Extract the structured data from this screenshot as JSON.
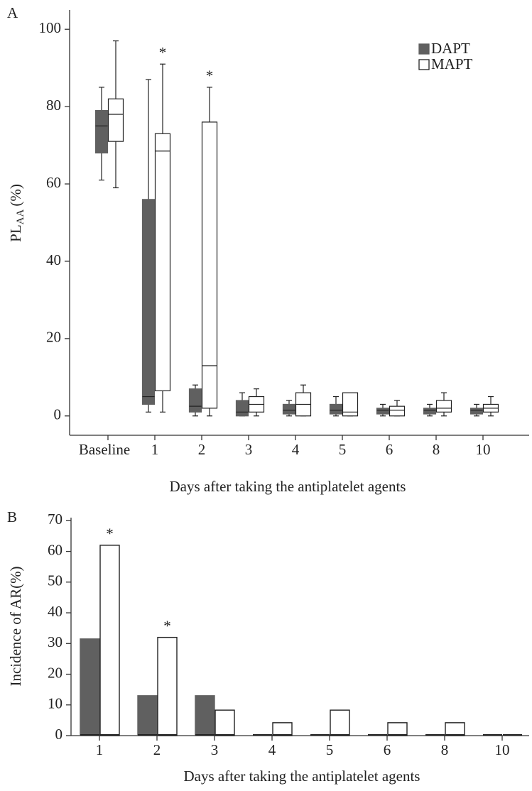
{
  "chart_data": [
    {
      "type": "box",
      "panel": "A",
      "ylabel": {
        "main": "PL",
        "sub": "AA",
        "unit": "(%)"
      },
      "xlabel": "Days after taking the antiplatelet agents",
      "categories": [
        "Baseline",
        "1",
        "2",
        "3",
        "4",
        "5",
        "6",
        "8",
        "10"
      ],
      "series": [
        {
          "name": "DAPT",
          "color": "#606060",
          "min": [
            61,
            1,
            0,
            0,
            0,
            0,
            0,
            0,
            0
          ],
          "q1": [
            68,
            3,
            1,
            0,
            0.5,
            0.5,
            0.5,
            0.5,
            0.5
          ],
          "median": [
            75,
            5,
            2.5,
            1,
            1.5,
            1.5,
            1.5,
            1.5,
            1.5
          ],
          "q3": [
            79,
            56,
            7,
            4,
            3,
            3,
            2,
            2,
            2
          ],
          "max": [
            85,
            87,
            8,
            6,
            4,
            5,
            3,
            3,
            3
          ]
        },
        {
          "name": "MAPT",
          "color": "#ffffff",
          "min": [
            59,
            1,
            0,
            0,
            0,
            0,
            0,
            0,
            0
          ],
          "q1": [
            71,
            6.5,
            2,
            1,
            0,
            0,
            0,
            1,
            1
          ],
          "median": [
            78,
            68.5,
            13,
            3,
            3,
            1,
            1.5,
            2,
            2
          ],
          "q3": [
            82,
            73,
            76,
            5,
            6,
            6,
            2.5,
            4,
            3
          ],
          "max": [
            97,
            91,
            85,
            7,
            8,
            6,
            4,
            6,
            5
          ]
        }
      ],
      "ylim": [
        -5,
        105
      ],
      "yticks": [
        0,
        20,
        40,
        60,
        80,
        100
      ],
      "legend": "top-right",
      "annotations": [
        {
          "text": "*",
          "category": "1",
          "series": "MAPT"
        },
        {
          "text": "*",
          "category": "2",
          "series": "MAPT"
        }
      ]
    },
    {
      "type": "bar",
      "panel": "B",
      "ylabel": "Incidence of AR(%)",
      "xlabel": "Days after taking the antiplatelet agents",
      "categories": [
        "1",
        "2",
        "3",
        "4",
        "5",
        "6",
        "8",
        "10"
      ],
      "series": [
        {
          "name": "DAPT",
          "color": "#606060",
          "values": [
            31.5,
            13,
            13,
            0,
            0,
            0,
            0,
            0
          ]
        },
        {
          "name": "MAPT",
          "color": "#ffffff",
          "values": [
            62,
            32,
            8.3,
            4.2,
            8.3,
            4.2,
            4.2,
            0
          ]
        }
      ],
      "ylim": [
        0,
        71
      ],
      "yticks": [
        0,
        10,
        20,
        30,
        40,
        50,
        60,
        70
      ],
      "annotations": [
        {
          "text": "*",
          "category": "1",
          "series": "MAPT"
        },
        {
          "text": "*",
          "category": "2",
          "series": "MAPT"
        }
      ]
    }
  ]
}
